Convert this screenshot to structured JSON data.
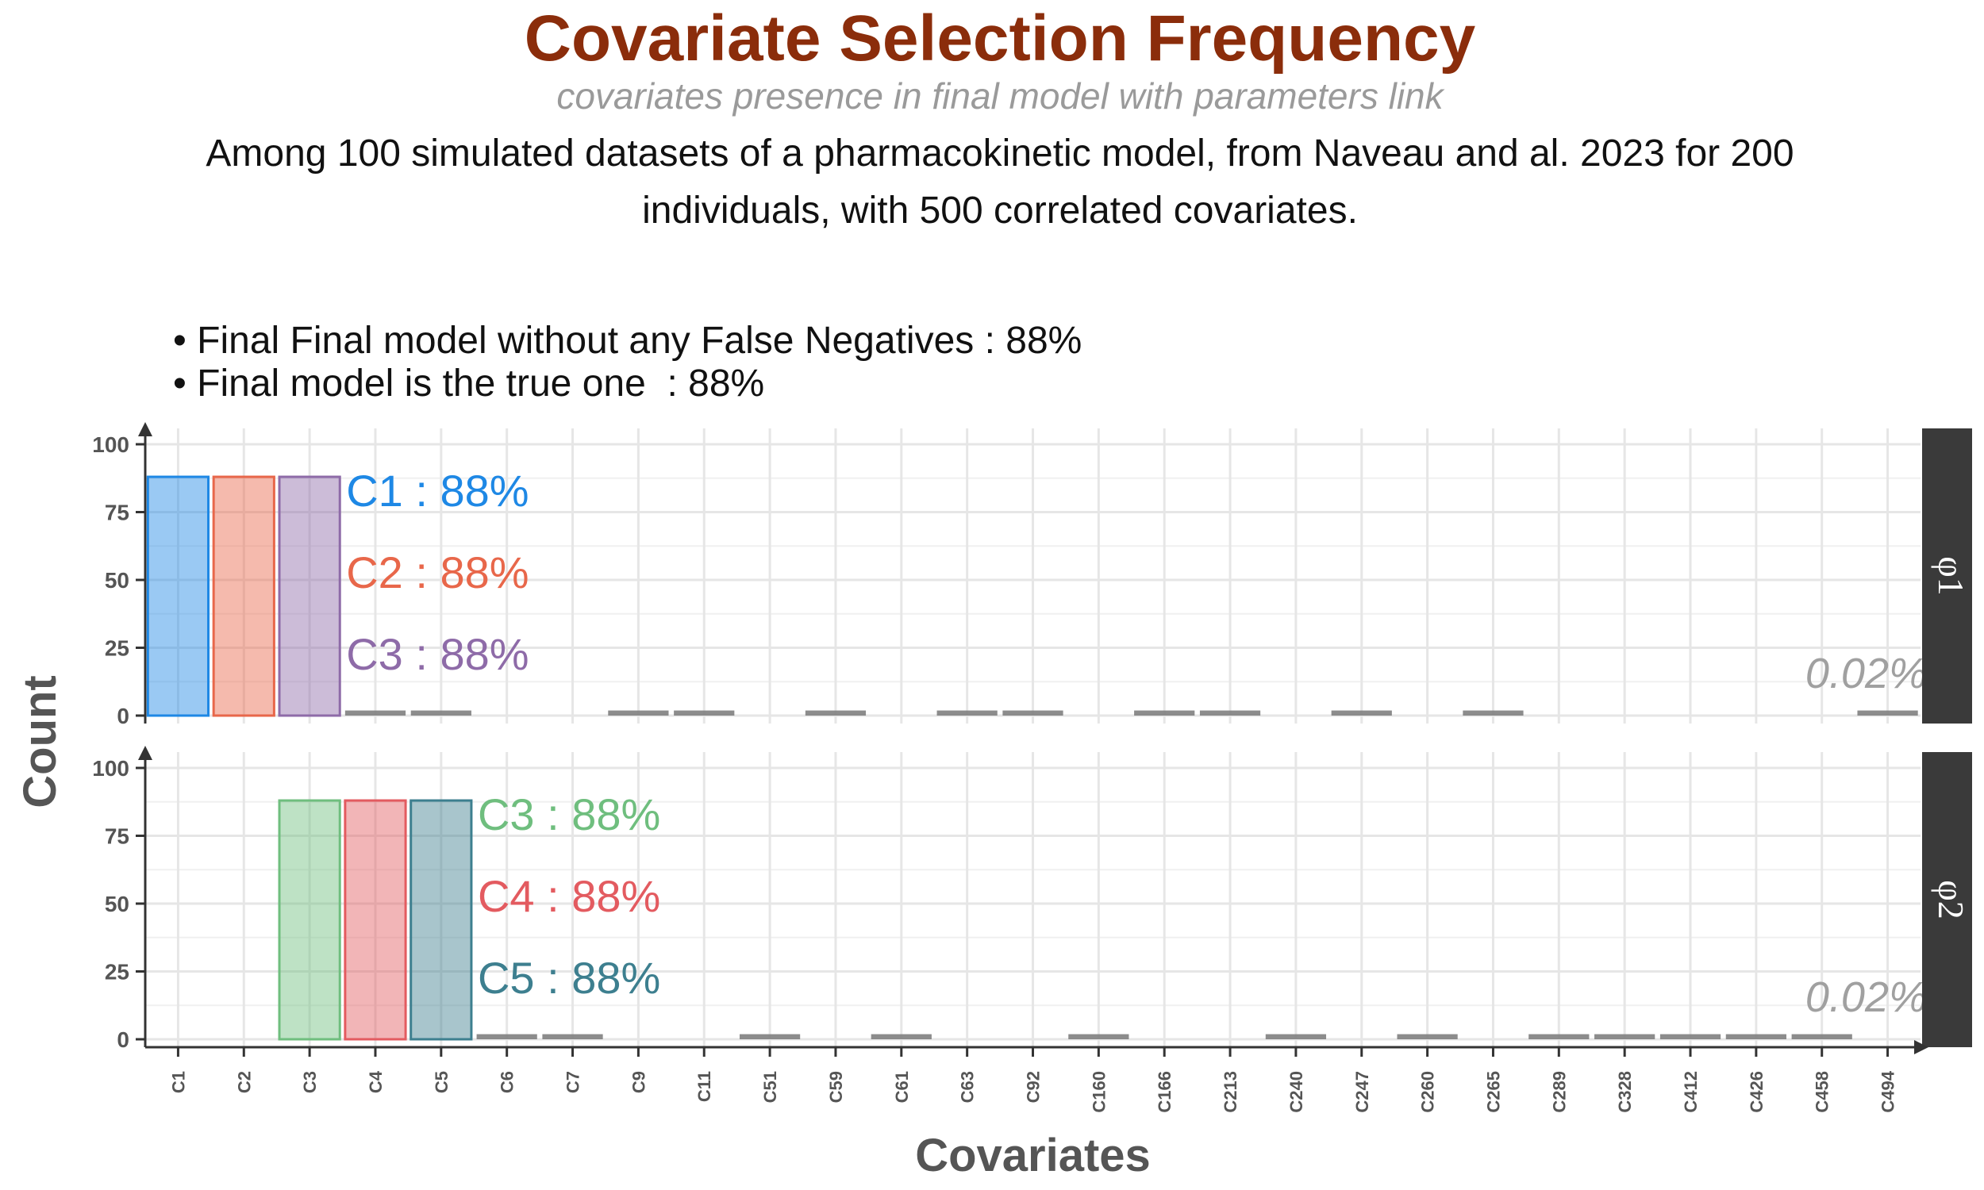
{
  "title": "Covariate Selection Frequency",
  "subtitle": "covariates presence in final model with parameters link",
  "caption_lines": [
    "Among 100 simulated datasets of a pharmacokinetic model, from Naveau and al. 2023 for 200",
    "individuals, with 500 correlated covariates."
  ],
  "bullets": [
    "• Final Final model without any False Negatives : 88%",
    "• Final model is the true one  : 88%"
  ],
  "chart_data": {
    "type": "bar",
    "xlabel": "Covariates",
    "ylabel": "Count",
    "ylim": [
      0,
      100
    ],
    "yticks": [
      0,
      25,
      50,
      75,
      100
    ],
    "grid": true,
    "categories": [
      "C1",
      "C2",
      "C3",
      "C4",
      "C5",
      "C6",
      "C7",
      "C9",
      "C11",
      "C51",
      "C59",
      "C61",
      "C63",
      "C92",
      "C160",
      "C166",
      "C213",
      "C240",
      "C247",
      "C260",
      "C265",
      "C289",
      "C328",
      "C412",
      "C426",
      "C458",
      "C494"
    ],
    "panels": [
      {
        "name": "φ1",
        "note": "0.02%",
        "values": {
          "C1": 88,
          "C2": 88,
          "C3": 88,
          "C4": 1,
          "C5": 1,
          "C9": 1,
          "C11": 1,
          "C59": 1,
          "C63": 1,
          "C92": 1,
          "C166": 1,
          "C213": 1,
          "C247": 1,
          "C265": 1,
          "C494": 1
        },
        "highlight": [
          {
            "category": "C1",
            "label": "C1 : 88%",
            "color": "#1E88E5"
          },
          {
            "category": "C2",
            "label": "C2 : 88%",
            "color": "#E8674A"
          },
          {
            "category": "C3",
            "label": "C3 : 88%",
            "color": "#8E6BA8"
          }
        ]
      },
      {
        "name": "φ2",
        "note": "0.02%",
        "values": {
          "C3": 88,
          "C4": 88,
          "C5": 88,
          "C6": 1,
          "C7": 1,
          "C51": 1,
          "C61": 1,
          "C160": 1,
          "C240": 1,
          "C260": 1,
          "C289": 1,
          "C328": 1,
          "C412": 1,
          "C426": 1,
          "C458": 1
        },
        "highlight": [
          {
            "category": "C3",
            "label": "C3 : 88%",
            "color": "#6FBE7E"
          },
          {
            "category": "C4",
            "label": "C4 : 88%",
            "color": "#E35B60"
          },
          {
            "category": "C5",
            "label": "C5 : 88%",
            "color": "#3D7F8F"
          }
        ]
      }
    ],
    "minor_bar_color": "#808080"
  }
}
